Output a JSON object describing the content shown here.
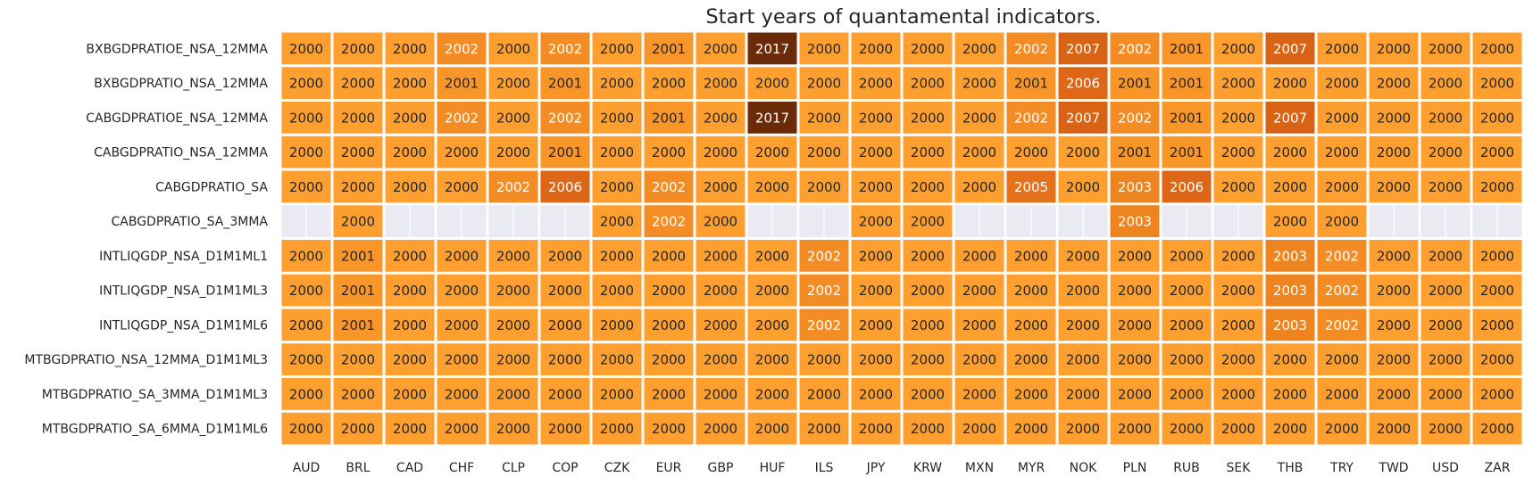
{
  "chart_data": {
    "type": "heatmap",
    "title": "Start years of quantamental indicators.",
    "xlabel": "",
    "ylabel": "",
    "columns": [
      "AUD",
      "BRL",
      "CAD",
      "CHF",
      "CLP",
      "COP",
      "CZK",
      "EUR",
      "GBP",
      "HUF",
      "ILS",
      "JPY",
      "KRW",
      "MXN",
      "MYR",
      "NOK",
      "PLN",
      "RUB",
      "SEK",
      "THB",
      "TRY",
      "TWD",
      "USD",
      "ZAR"
    ],
    "rows": [
      "BXBGDPRATIOE_NSA_12MMA",
      "BXBGDPRATIO_NSA_12MMA",
      "CABGDPRATIOE_NSA_12MMA",
      "CABGDPRATIO_NSA_12MMA",
      "CABGDPRATIO_SA",
      "CABGDPRATIO_SA_3MMA",
      "INTLIQGDP_NSA_D1M1ML1",
      "INTLIQGDP_NSA_D1M1ML3",
      "INTLIQGDP_NSA_D1M1ML6",
      "MTBGDPRATIO_NSA_12MMA_D1M1ML3",
      "MTBGDPRATIO_SA_3MMA_D1M1ML3",
      "MTBGDPRATIO_SA_6MMA_D1M1ML6"
    ],
    "values": [
      [
        2000,
        2000,
        2000,
        2002,
        2000,
        2002,
        2000,
        2001,
        2000,
        2017,
        2000,
        2000,
        2000,
        2000,
        2002,
        2007,
        2002,
        2001,
        2000,
        2007,
        2000,
        2000,
        2000,
        2000
      ],
      [
        2000,
        2000,
        2000,
        2001,
        2000,
        2001,
        2000,
        2000,
        2000,
        2000,
        2000,
        2000,
        2000,
        2000,
        2001,
        2006,
        2001,
        2001,
        2000,
        2000,
        2000,
        2000,
        2000,
        2000
      ],
      [
        2000,
        2000,
        2000,
        2002,
        2000,
        2002,
        2000,
        2001,
        2000,
        2017,
        2000,
        2000,
        2000,
        2000,
        2002,
        2007,
        2002,
        2001,
        2000,
        2007,
        2000,
        2000,
        2000,
        2000
      ],
      [
        2000,
        2000,
        2000,
        2000,
        2000,
        2001,
        2000,
        2000,
        2000,
        2000,
        2000,
        2000,
        2000,
        2000,
        2000,
        2000,
        2001,
        2001,
        2000,
        2000,
        2000,
        2000,
        2000,
        2000
      ],
      [
        2000,
        2000,
        2000,
        2000,
        2002,
        2006,
        2000,
        2002,
        2000,
        2000,
        2000,
        2000,
        2000,
        2000,
        2005,
        2000,
        2003,
        2006,
        2000,
        2000,
        2000,
        2000,
        2000,
        2000
      ],
      [
        null,
        2000,
        null,
        null,
        null,
        null,
        2000,
        2002,
        2000,
        null,
        null,
        2000,
        2000,
        null,
        null,
        null,
        2003,
        null,
        null,
        2000,
        2000,
        null,
        null,
        null
      ],
      [
        2000,
        2001,
        2000,
        2000,
        2000,
        2000,
        2000,
        2000,
        2000,
        2000,
        2002,
        2000,
        2000,
        2000,
        2000,
        2000,
        2000,
        2000,
        2000,
        2003,
        2002,
        2000,
        2000,
        2000
      ],
      [
        2000,
        2001,
        2000,
        2000,
        2000,
        2000,
        2000,
        2000,
        2000,
        2000,
        2002,
        2000,
        2000,
        2000,
        2000,
        2000,
        2000,
        2000,
        2000,
        2003,
        2002,
        2000,
        2000,
        2000
      ],
      [
        2000,
        2001,
        2000,
        2000,
        2000,
        2000,
        2000,
        2000,
        2000,
        2000,
        2002,
        2000,
        2000,
        2000,
        2000,
        2000,
        2000,
        2000,
        2000,
        2003,
        2002,
        2000,
        2000,
        2000
      ],
      [
        2000,
        2000,
        2000,
        2000,
        2000,
        2000,
        2000,
        2000,
        2000,
        2000,
        2000,
        2000,
        2000,
        2000,
        2000,
        2000,
        2000,
        2000,
        2000,
        2000,
        2000,
        2000,
        2000,
        2000
      ],
      [
        2000,
        2000,
        2000,
        2000,
        2000,
        2000,
        2000,
        2000,
        2000,
        2000,
        2000,
        2000,
        2000,
        2000,
        2000,
        2000,
        2000,
        2000,
        2000,
        2000,
        2000,
        2000,
        2000,
        2000
      ],
      [
        2000,
        2000,
        2000,
        2000,
        2000,
        2000,
        2000,
        2000,
        2000,
        2000,
        2000,
        2000,
        2000,
        2000,
        2000,
        2000,
        2000,
        2000,
        2000,
        2000,
        2000,
        2000,
        2000,
        2000
      ]
    ],
    "missing_color": "#eaeaf2",
    "grid_line_color": "#ffffff",
    "color_scale": {
      "2000": "#fe9f30",
      "2001": "#f9962a",
      "2002": "#f38c24",
      "2003": "#ee841f",
      "2005": "#e4721a",
      "2006": "#de6717",
      "2007": "#d96314",
      "2017": "#6b2a08"
    },
    "text_colors": {
      "light": "#ffffff",
      "dark": "#262626"
    }
  }
}
